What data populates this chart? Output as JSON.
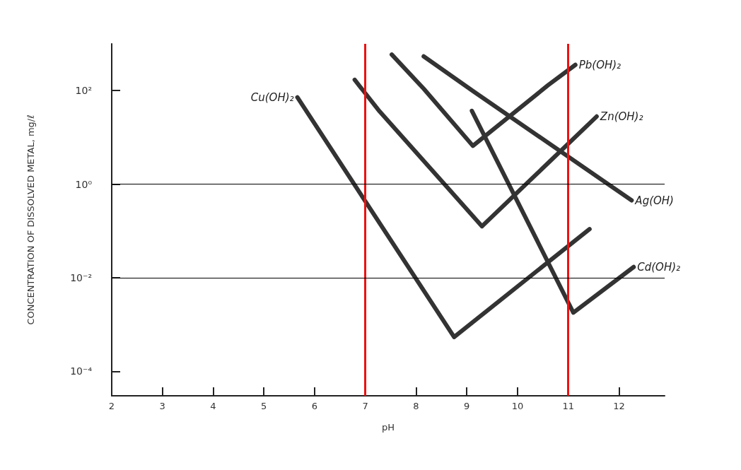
{
  "chart_data": {
    "type": "line",
    "xlabel": "pH",
    "ylabel": "CONCENTRATION OF DISSOLVED METAL, mg/ℓ",
    "log": "y",
    "xlim": [
      2,
      12.9
    ],
    "xticks": [
      2,
      3,
      4,
      5,
      6,
      7,
      8,
      9,
      10,
      11,
      12
    ],
    "ylim": [
      3e-05,
      1000
    ],
    "yticks": [
      {
        "value": 0.0001,
        "label": "10⁻⁴"
      },
      {
        "value": 0.01,
        "label": "10⁻²"
      },
      {
        "value": 1,
        "label": "10⁰"
      },
      {
        "value": 100,
        "label": "10²"
      }
    ],
    "grid": false,
    "legend": false,
    "marker": "none",
    "line_style": "solid",
    "series": [
      {
        "name": "Cu(OH)₂",
        "color": "#333333",
        "x": [
          5.66,
          8.75,
          11.42
        ],
        "values": [
          72,
          0.00054,
          0.11
        ]
      },
      {
        "name": "Zn(OH)₂",
        "color": "#333333",
        "x": [
          6.79,
          7.28,
          9.3,
          11.56
        ],
        "values": [
          170,
          36,
          0.126,
          28
        ]
      },
      {
        "name": "Pb(OH)₂",
        "color": "#333333",
        "x": [
          7.52,
          8.15,
          9.12,
          10.6,
          11.14
        ],
        "values": [
          590,
          110,
          6.6,
          130,
          355
        ]
      },
      {
        "name": "Ag(OH)",
        "color": "#333333",
        "x": [
          8.15,
          9.14,
          12.25
        ],
        "values": [
          540,
          95,
          0.45
        ]
      },
      {
        "name": "Cd(OH)₂",
        "color": "#333333",
        "x": [
          9.1,
          11.1,
          12.29
        ],
        "values": [
          37,
          0.0018,
          0.017
        ]
      }
    ],
    "ref_lines": [
      {
        "axis": "x",
        "value": 7,
        "color": "#ee1111"
      },
      {
        "axis": "x",
        "value": 11,
        "color": "#ee1111"
      },
      {
        "axis": "y",
        "value": 1,
        "color": "#000000"
      },
      {
        "axis": "y",
        "value": 0.01,
        "color": "#000000"
      }
    ]
  }
}
